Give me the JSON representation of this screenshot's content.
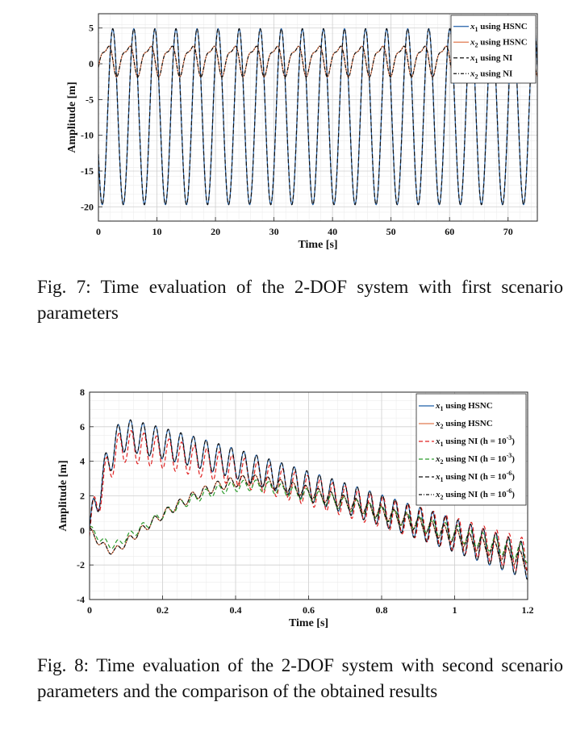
{
  "figures": [
    {
      "caption": "Fig. 7: Time evaluation of the 2-DOF system with first scenario parameters",
      "chart_data": {
        "type": "line",
        "xlabel": "Time [s]",
        "ylabel": "Amplitude [m]",
        "xlim": [
          0,
          75
        ],
        "ylim": [
          -22,
          7
        ],
        "xticks": [
          0,
          10,
          20,
          30,
          40,
          50,
          60,
          70
        ],
        "yticks": [
          5,
          0,
          -5,
          -10,
          -15,
          -20
        ],
        "grid": true,
        "legend_position": "top-right",
        "period": 3.6,
        "series": [
          {
            "sym": "x",
            "sub": "1",
            "suffix": " using HSNC",
            "color": "#1f5fa8",
            "dash": "",
            "amplitude_range": [
              -19.7,
              4.9
            ]
          },
          {
            "sym": "x",
            "sub": "2",
            "suffix": " using HSNC",
            "color": "#e07a4f",
            "dash": "",
            "amplitude_range": [
              -1.8,
              3.2
            ]
          },
          {
            "sym": "x",
            "sub": "1",
            "suffix": " using NI",
            "color": "#111111",
            "dash": "5,3",
            "amplitude_range": [
              -19.7,
              4.9
            ]
          },
          {
            "sym": "x",
            "sub": "2",
            "suffix": " using NI",
            "color": "#111111",
            "dash": "4,2,1,2",
            "amplitude_range": [
              -1.8,
              3.2
            ]
          }
        ]
      }
    },
    {
      "caption": "Fig. 8: Time evaluation of the 2-DOF system with second scenario parameters and the comparison of the obtained results",
      "chart_data": {
        "type": "line",
        "xlabel": "Time [s]",
        "ylabel": "Amplitude [m]",
        "xlim": [
          0,
          1.2
        ],
        "ylim": [
          -4,
          8
        ],
        "xticks": [
          0,
          0.2,
          0.4,
          0.6,
          0.8,
          1,
          1.2
        ],
        "yticks": [
          8,
          6,
          4,
          2,
          0,
          -2,
          -4
        ],
        "grid": true,
        "legend_position": "top-right",
        "oscillation_period": 0.0345,
        "series": [
          {
            "sym": "x",
            "sub": "1",
            "suffix": " using HSNC",
            "color": "#1f5fa8",
            "dash": ""
          },
          {
            "sym": "x",
            "sub": "2",
            "suffix": " using HSNC",
            "color": "#e07a4f",
            "dash": ""
          },
          {
            "sym": "x",
            "sub": "1",
            "suffix": " using NI (h = 10",
            "sup": "-3",
            "tail": ")",
            "color": "#e02020",
            "dash": "5,3"
          },
          {
            "sym": "x",
            "sub": "2",
            "suffix": " using NI (h = 10",
            "sup": "-3",
            "tail": ")",
            "color": "#2a9a2a",
            "dash": "5,3"
          },
          {
            "sym": "x",
            "sub": "1",
            "suffix": " using NI (h = 10",
            "sup": "-6",
            "tail": ")",
            "color": "#111111",
            "dash": "5,3"
          },
          {
            "sym": "x",
            "sub": "2",
            "suffix": " using NI (h = 10",
            "sup": "-6",
            "tail": ")",
            "color": "#111111",
            "dash": "4,2,1,2"
          }
        ]
      }
    }
  ]
}
